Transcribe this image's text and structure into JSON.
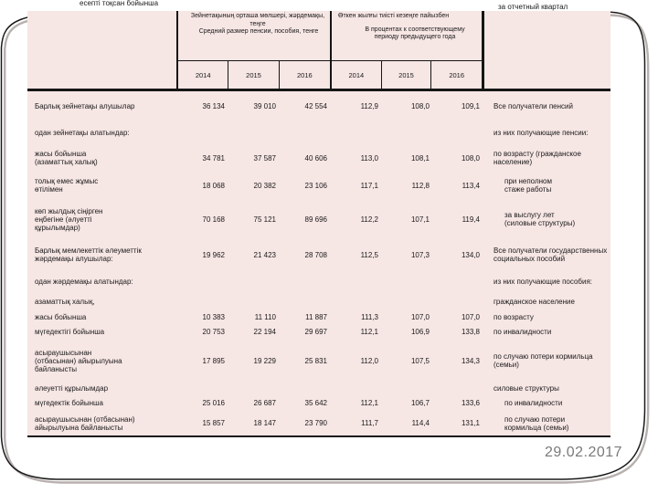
{
  "slide": {
    "top_left_note": "есепті тоқсан бойынша",
    "top_right_note": "за отчетный квартал",
    "date": "29.02.2017"
  },
  "colors": {
    "cell_pink": "#f6e6e4",
    "border_black": "#151515",
    "date_gray": "#7a7a7a"
  },
  "table": {
    "group1_header": {
      "kk": "Зейнетақының орташа мөлшері, жәрдемақы,\nтеңге",
      "ru": "Средний размер пенсии, пособия, тенге"
    },
    "group2_header": {
      "kk": "Өткен жылғы тиісті кезеңге пайызбен",
      "ru": "В процентах к соответствующему\nпериоду предыдущего года"
    },
    "years": [
      "2014",
      "2015",
      "2016",
      "2014",
      "2015",
      "2016"
    ],
    "rows": [
      {
        "kk": "Барлық зейнетақы алушылар",
        "a": [
          "36 134",
          "39 010",
          "42 554"
        ],
        "p": [
          "112,9",
          "108,0",
          "109,1"
        ],
        "ru": "Все получатели пенсий"
      },
      {
        "kk": "одан зейнетақы алатындар:",
        "a": [
          "",
          "",
          ""
        ],
        "p": [
          "",
          "",
          ""
        ],
        "ru": "из них получающие пенсии:"
      },
      {
        "kk": "жасы бойынша\n(азаматтық халық)",
        "a": [
          "34 781",
          "37 587",
          "40 606"
        ],
        "p": [
          "113,0",
          "108,1",
          "108,0"
        ],
        "ru": "по возрасту  (гражданское\nнаселение)"
      },
      {
        "kk": "толық емес жұмыс\nөтілімен",
        "a": [
          "18 068",
          "20 382",
          "23 106"
        ],
        "p": [
          "117,1",
          "112,8",
          "113,4"
        ],
        "ru": "при неполном\nстаже работы"
      },
      {
        "kk": "көп жылдық сіңірген\nеңбегіне (әлуетті\nқұрылымдар)",
        "a": [
          "70 168",
          "75 121",
          "89 696"
        ],
        "p": [
          "112,2",
          "107,1",
          "119,4"
        ],
        "ru": "за выслугу лет\n(силовые структуры)"
      },
      {
        "kk": "Барлық мемлекеттік әлеуметтік\nжәрдемақы алушылар:",
        "a": [
          "19 962",
          "21 423",
          "28 708"
        ],
        "p": [
          "112,5",
          "107,3",
          "134,0"
        ],
        "ru": "Все получатели государственных\nсоциальных пособий"
      },
      {
        "kk": "одан жәрдемақы алатындар:",
        "a": [
          "",
          "",
          ""
        ],
        "p": [
          "",
          "",
          ""
        ],
        "ru": "из них получающие пособия:"
      },
      {
        "kk": "азаматтық халық,",
        "a": [
          "",
          "",
          ""
        ],
        "p": [
          "",
          "",
          ""
        ],
        "ru": "гражданское население"
      },
      {
        "kk": "жасы бойынша",
        "a": [
          "10 383",
          "11 110",
          "11 887"
        ],
        "p": [
          "111,3",
          "107,0",
          "107,0"
        ],
        "ru": "по возрасту"
      },
      {
        "kk": "мүгедектігі бойынша",
        "a": [
          "20 753",
          "22 194",
          "29 697"
        ],
        "p": [
          "112,1",
          "106,9",
          "133,8"
        ],
        "ru": "по инвалидности"
      },
      {
        "kk": "асыраушысынан\n(отбасынан) айырылуына\nбайланысты",
        "a": [
          "17 895",
          "19 229",
          "25 831"
        ],
        "p": [
          "112,0",
          "107,5",
          "134,3"
        ],
        "ru": "по случаю потери кормильца\n(семьи)"
      },
      {
        "kk": "әлеуетті құрылымдар",
        "a": [
          "",
          "",
          ""
        ],
        "p": [
          "",
          "",
          ""
        ],
        "ru": "силовые структуры"
      },
      {
        "kk": "мүгедектік бойынша",
        "a": [
          "25 016",
          "26 687",
          "35 642"
        ],
        "p": [
          "112,1",
          "106,7",
          "133,6"
        ],
        "ru": "по инвалидности"
      },
      {
        "kk": "асыраушысынан (отбасынан)\nайырылуына байланысты",
        "a": [
          "15 857",
          "18 147",
          "23 790"
        ],
        "p": [
          "111,7",
          "114,4",
          "131,1"
        ],
        "ru": "по случаю потери\nкормильца (семьи)"
      }
    ]
  }
}
